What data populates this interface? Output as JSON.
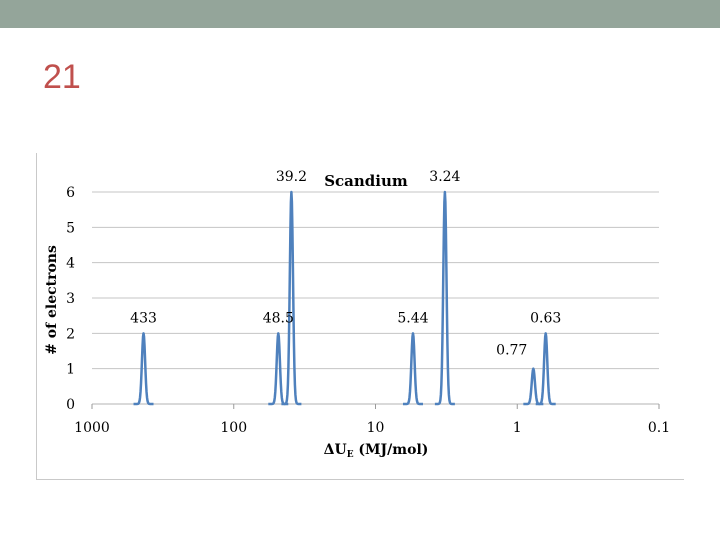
{
  "slide": {
    "title": "21",
    "title_color": "#c0504d",
    "top_band_color": "#94a59a"
  },
  "chart_data": {
    "type": "line",
    "title": "Scandium",
    "xlabel_main": "ΔU",
    "xlabel_sub": "E",
    "xlabel_unit": " (MJ/mol)",
    "ylabel": "# of electrons",
    "x_scale": "log",
    "x_reversed": true,
    "xlim": [
      1000,
      0.1
    ],
    "ylim": [
      0,
      6
    ],
    "x_ticks": [
      {
        "value": 1000,
        "label": "1000"
      },
      {
        "value": 100,
        "label": "100"
      },
      {
        "value": 10,
        "label": "10"
      },
      {
        "value": 1,
        "label": "1"
      },
      {
        "value": 0.1,
        "label": "0.1"
      }
    ],
    "y_ticks": [
      {
        "value": 0,
        "label": "0"
      },
      {
        "value": 1,
        "label": "1"
      },
      {
        "value": 2,
        "label": "2"
      },
      {
        "value": 3,
        "label": "3"
      },
      {
        "value": 4,
        "label": "4"
      },
      {
        "value": 5,
        "label": "5"
      },
      {
        "value": 6,
        "label": "6"
      }
    ],
    "grid": true,
    "line_color": "#4f81bd",
    "peaks": [
      {
        "energy": 433,
        "electrons": 2,
        "label": "433"
      },
      {
        "energy": 48.5,
        "electrons": 2,
        "label": "48.5"
      },
      {
        "energy": 39.2,
        "electrons": 6,
        "label": "39.2"
      },
      {
        "energy": 5.44,
        "electrons": 2,
        "label": "5.44"
      },
      {
        "energy": 3.24,
        "electrons": 6,
        "label": "3.24"
      },
      {
        "energy": 0.77,
        "electrons": 1,
        "label": "0.77"
      },
      {
        "energy": 0.63,
        "electrons": 2,
        "label": "0.63"
      }
    ]
  }
}
